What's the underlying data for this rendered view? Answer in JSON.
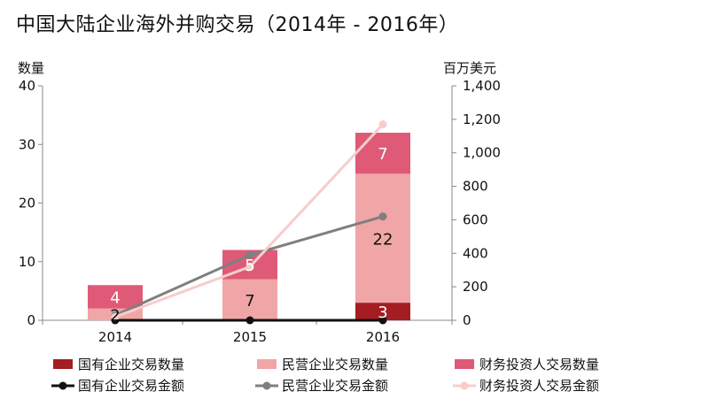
{
  "chart_data": {
    "type": "bar",
    "title": "中国大陆企业海外并购交易（2014年 - 2016年）",
    "ylabel_left": "数量",
    "ylabel_right": "百万美元",
    "categories": [
      "2014",
      "2015",
      "2016"
    ],
    "ylim_left": [
      0,
      40
    ],
    "yticks_left": [
      "0",
      "10",
      "20",
      "30",
      "40"
    ],
    "ylim_right": [
      0,
      1400
    ],
    "yticks_right": [
      "0",
      "200",
      "400",
      "600",
      "800",
      "1,000",
      "1,200",
      "1,400"
    ],
    "grid": false,
    "legend_position": "bottom",
    "bar_series": [
      {
        "name": "国有企业交易数量",
        "color": "#a31d22",
        "values": [
          0,
          0,
          3
        ],
        "labels": [
          "",
          "",
          "3"
        ]
      },
      {
        "name": "民营企业交易数量",
        "color": "#f0a6a6",
        "values": [
          2,
          7,
          22
        ],
        "labels": [
          "2",
          "7",
          "22"
        ]
      },
      {
        "name": "财务投资人交易数量",
        "color": "#df5a77",
        "values": [
          4,
          5,
          7
        ],
        "labels": [
          "4",
          "5",
          "7"
        ]
      }
    ],
    "line_series": [
      {
        "name": "国有企业交易金额",
        "color": "#111111",
        "values": [
          0,
          0,
          0
        ]
      },
      {
        "name": "民营企业交易金额",
        "color": "#7f7f7f",
        "values": [
          30,
          390,
          620
        ]
      },
      {
        "name": "财务投资人交易金额",
        "color": "#f8cccc",
        "values": [
          20,
          320,
          1170
        ]
      }
    ]
  }
}
